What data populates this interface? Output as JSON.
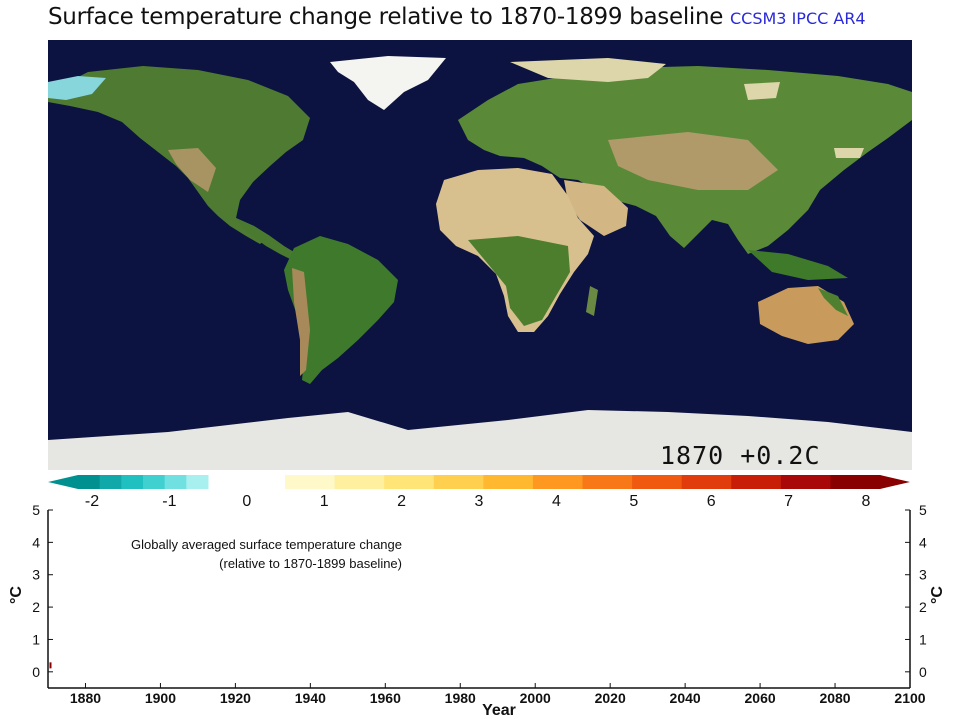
{
  "header": {
    "title": "Surface temperature change relative to 1870-1899 baseline",
    "model": "CCSM3 IPCC AR4"
  },
  "map": {
    "stamp": "1870 +0.2C"
  },
  "colorbar": {
    "ticks": [
      "-2",
      "-1",
      "0",
      "1",
      "2",
      "3",
      "4",
      "5",
      "6",
      "7",
      "8"
    ],
    "colors": {
      "cold": [
        "#009090",
        "#10a8a8",
        "#20c0c0",
        "#40d0d0",
        "#70e0e0",
        "#a8f0f0"
      ],
      "warm": [
        "#fff8c8",
        "#fff0a0",
        "#ffe478",
        "#ffd050",
        "#ffb830",
        "#ff9820",
        "#f87818",
        "#f05a10",
        "#e03c0c",
        "#c81e08",
        "#a80808",
        "#880000"
      ]
    }
  },
  "chart_data": {
    "type": "line",
    "annotation": [
      "Globally averaged surface temperature change",
      "(relative to 1870-1899 baseline)"
    ],
    "xlabel": "Year",
    "ylabel": "°C",
    "xlim": [
      1870,
      2100
    ],
    "ylim": [
      -0.5,
      5
    ],
    "xticks": [
      1880,
      1900,
      1920,
      1940,
      1960,
      1980,
      2000,
      2020,
      2040,
      2060,
      2080,
      2100
    ],
    "yticks": [
      0,
      1,
      2,
      3,
      4,
      5
    ],
    "series": [
      {
        "color": "#8b0000",
        "x": [
          1870
        ],
        "y": [
          0.2
        ]
      }
    ]
  }
}
